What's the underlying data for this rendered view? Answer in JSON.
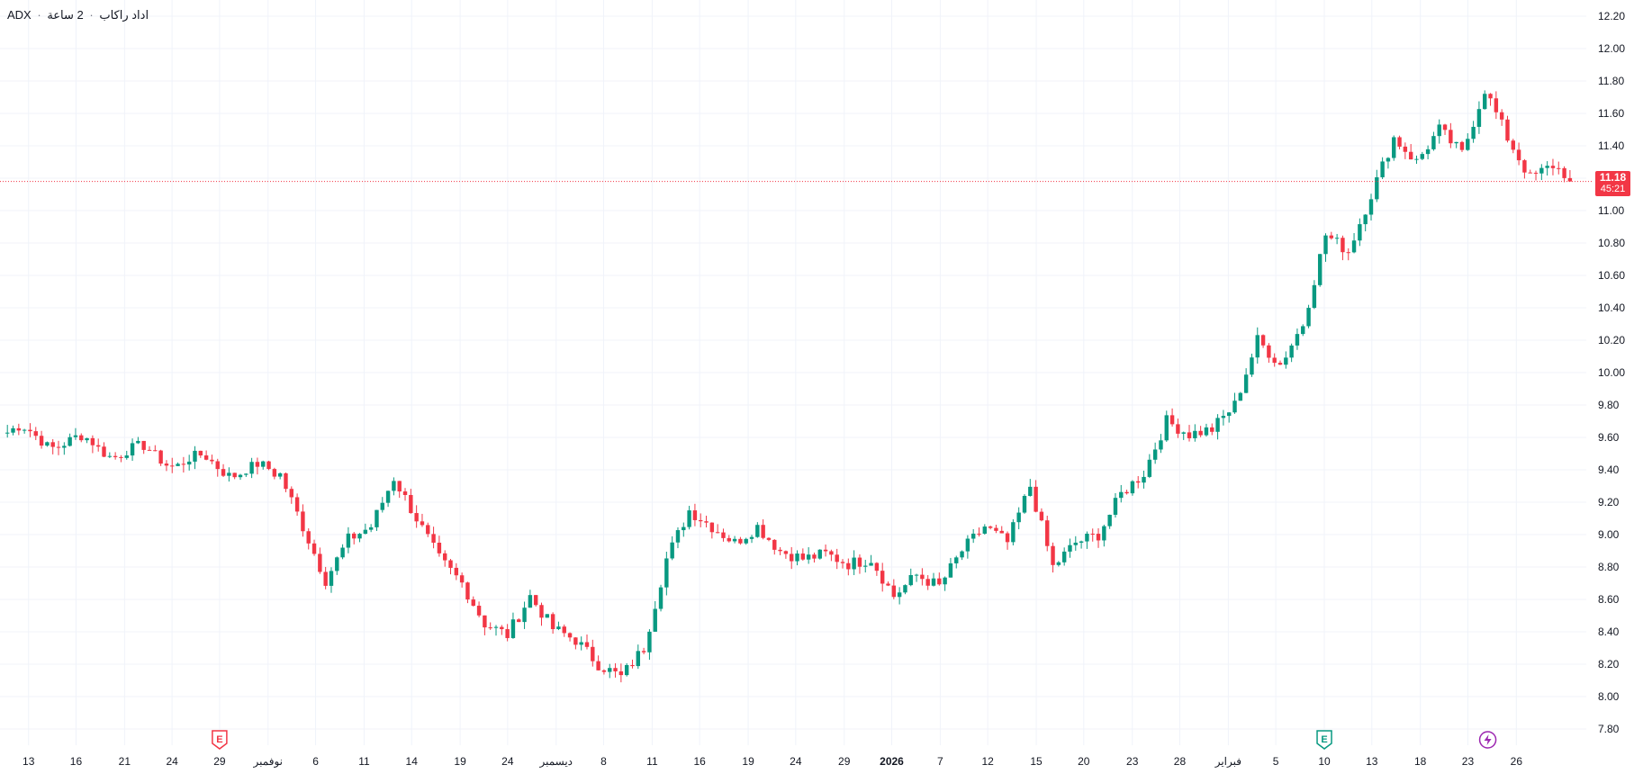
{
  "header": {
    "symbol": "ADX",
    "interval": "2 ساعة",
    "name": "اداد راكاب",
    "separator": "·"
  },
  "price_badge": {
    "price": "11.18",
    "countdown": "45:21"
  },
  "colors": {
    "up": "#089981",
    "down": "#f23645",
    "grid": "#f0f3fa",
    "axis_text": "#131722",
    "last_price_line": "#f23645",
    "earnings_red": "#f23645",
    "earnings_green": "#089981",
    "dividend": "#9c27b0"
  },
  "events": [
    {
      "type": "earnings",
      "label": "E",
      "color": "earnings_red",
      "date_index": 1
    },
    {
      "type": "earnings",
      "label": "E",
      "color": "earnings_green",
      "date_index": 2
    },
    {
      "type": "dividend",
      "icon": "lightning-icon",
      "color": "dividend",
      "date_index": 3
    }
  ],
  "chart_data": {
    "type": "candlestick",
    "title": "",
    "xlabel": "",
    "ylabel": "",
    "ylim": [
      7.7,
      12.3
    ],
    "y_ticks": [
      "12.20",
      "12.00",
      "11.80",
      "11.60",
      "11.40",
      "11.20",
      "11.00",
      "10.80",
      "10.60",
      "10.40",
      "10.20",
      "10.00",
      "9.80",
      "9.60",
      "9.40",
      "9.20",
      "9.00",
      "8.80",
      "8.60",
      "8.40",
      "8.20",
      "8.00",
      "7.80"
    ],
    "x_tick_labels": [
      "13",
      "16",
      "21",
      "24",
      "29",
      "نوفمبر",
      "6",
      "11",
      "14",
      "19",
      "24",
      "ديسمبر",
      "8",
      "11",
      "16",
      "19",
      "24",
      "29",
      "2026",
      "7",
      "12",
      "15",
      "20",
      "23",
      "28",
      "فبراير",
      "5",
      "10",
      "13",
      "18",
      "23",
      "26"
    ],
    "x_tick_positions": [
      0.3,
      9.6,
      19.1,
      28.4,
      37.7,
      47.2,
      56.5,
      66.0,
      75.3,
      84.8,
      94.1,
      103.6,
      112.9,
      122.4,
      131.7,
      141.2,
      150.5,
      160.0,
      169.3,
      178.8,
      188.1,
      197.6,
      206.9,
      216.4,
      225.7,
      235.2,
      244.5,
      254.0,
      263.3,
      272.8,
      282.1,
      291.6
    ],
    "bold_tick_labels": [
      "2026"
    ],
    "last_price": 11.18,
    "candles": [
      {
        "segment": "Oct13-Oct31",
        "from": 9.63,
        "to": 9.37,
        "n": 48
      },
      {
        "segment": "Nov",
        "points": [
          9.37,
          9.05,
          8.72,
          8.97,
          9.05,
          9.35,
          9.1,
          8.85,
          8.7,
          8.45,
          8.38,
          8.62,
          8.42,
          8.35,
          8.2,
          8.12
        ]
      },
      {
        "segment": "Dec",
        "points": [
          8.12,
          8.3,
          8.85,
          9.15,
          9.05,
          8.95,
          9.05,
          8.9,
          8.85,
          8.88,
          8.82,
          8.85,
          8.62,
          8.75,
          8.68
        ]
      },
      {
        "segment": "Jan",
        "points": [
          8.68,
          8.9,
          9.05,
          8.95,
          9.3,
          8.8,
          8.95,
          9.0,
          9.25,
          9.38,
          9.7,
          9.62,
          9.65
        ]
      },
      {
        "segment": "Feb",
        "points": [
          9.65,
          9.8,
          10.2,
          10.05,
          10.3,
          10.85,
          10.75,
          11.1,
          11.45,
          11.3,
          11.5,
          11.35,
          11.75,
          11.45,
          11.2,
          11.28,
          11.18
        ]
      }
    ]
  }
}
